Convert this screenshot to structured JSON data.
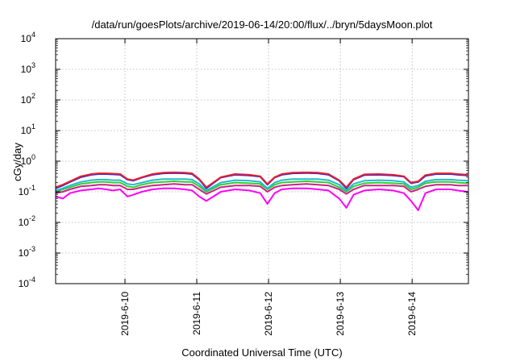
{
  "chart_data": {
    "type": "line",
    "title": "/data/run/goesPlots/archive/2019-06-14/20:00/flux/../bryn/5daysMoon.plot",
    "xlabel": "Coordinated Universal Time (UTC)",
    "ylabel": "cGy/day",
    "x_range": [
      "2019-06-09 02:00",
      "2019-06-14 20:00"
    ],
    "x_ticks": [
      "2019-6-10",
      "2019-6-11",
      "2019-6-12",
      "2019-6-13",
      "2019-6-14"
    ],
    "y_scale": "log",
    "ylim": [
      0.0001,
      10000
    ],
    "y_ticks": [
      {
        "base": "10",
        "exp": "4"
      },
      {
        "base": "10",
        "exp": "3"
      },
      {
        "base": "10",
        "exp": "2"
      },
      {
        "base": "10",
        "exp": "1"
      },
      {
        "base": "10",
        "exp": "0"
      },
      {
        "base": "10",
        "exp": "-1"
      },
      {
        "base": "10",
        "exp": "-2"
      },
      {
        "base": "10",
        "exp": "-3"
      },
      {
        "base": "10",
        "exp": "-4"
      }
    ],
    "grid": true,
    "legend": "none",
    "x_days": [
      0,
      0.1,
      0.2,
      0.35,
      0.5,
      0.6,
      0.7,
      0.8,
      0.9,
      1.0,
      1.08,
      1.2,
      1.35,
      1.5,
      1.65,
      1.8,
      1.9,
      2.0,
      2.1,
      2.3,
      2.5,
      2.7,
      2.85,
      2.95,
      3.05,
      3.15,
      3.3,
      3.5,
      3.65,
      3.8,
      3.95,
      4.05,
      4.15,
      4.3,
      4.5,
      4.7,
      4.85,
      4.95,
      5.05,
      5.15,
      5.3,
      5.5,
      5.6,
      5.74
    ],
    "series": [
      {
        "color": "#e8202a",
        "values": [
          0.14,
          0.17,
          0.22,
          0.32,
          0.38,
          0.4,
          0.4,
          0.39,
          0.38,
          0.26,
          0.24,
          0.3,
          0.38,
          0.42,
          0.43,
          0.42,
          0.4,
          0.26,
          0.14,
          0.3,
          0.38,
          0.36,
          0.32,
          0.18,
          0.3,
          0.38,
          0.42,
          0.43,
          0.42,
          0.38,
          0.24,
          0.14,
          0.26,
          0.37,
          0.38,
          0.36,
          0.32,
          0.2,
          0.22,
          0.35,
          0.4,
          0.4,
          0.38,
          0.36
        ]
      },
      {
        "color": "#2222ee",
        "values": [
          0.13,
          0.16,
          0.21,
          0.3,
          0.36,
          0.38,
          0.38,
          0.37,
          0.36,
          0.25,
          0.23,
          0.29,
          0.36,
          0.4,
          0.41,
          0.4,
          0.38,
          0.25,
          0.13,
          0.29,
          0.36,
          0.34,
          0.31,
          0.17,
          0.29,
          0.36,
          0.4,
          0.41,
          0.4,
          0.36,
          0.23,
          0.13,
          0.25,
          0.35,
          0.36,
          0.34,
          0.31,
          0.19,
          0.21,
          0.33,
          0.38,
          0.38,
          0.36,
          0.34
        ]
      },
      {
        "color": "#22bbcc",
        "values": [
          0.11,
          0.13,
          0.16,
          0.21,
          0.24,
          0.25,
          0.25,
          0.24,
          0.24,
          0.18,
          0.17,
          0.2,
          0.24,
          0.26,
          0.26,
          0.26,
          0.25,
          0.18,
          0.11,
          0.2,
          0.24,
          0.23,
          0.21,
          0.13,
          0.2,
          0.24,
          0.26,
          0.26,
          0.26,
          0.24,
          0.17,
          0.11,
          0.18,
          0.23,
          0.24,
          0.23,
          0.21,
          0.14,
          0.16,
          0.22,
          0.25,
          0.25,
          0.24,
          0.23
        ]
      },
      {
        "color": "#33cc33",
        "values": [
          0.1,
          0.12,
          0.14,
          0.18,
          0.2,
          0.21,
          0.21,
          0.2,
          0.2,
          0.15,
          0.14,
          0.17,
          0.2,
          0.21,
          0.22,
          0.21,
          0.21,
          0.15,
          0.1,
          0.17,
          0.2,
          0.19,
          0.18,
          0.12,
          0.17,
          0.2,
          0.21,
          0.22,
          0.21,
          0.2,
          0.14,
          0.1,
          0.15,
          0.19,
          0.2,
          0.19,
          0.18,
          0.12,
          0.14,
          0.19,
          0.21,
          0.21,
          0.2,
          0.19
        ]
      },
      {
        "color": "#cc2288",
        "values": [
          0.09,
          0.1,
          0.12,
          0.15,
          0.16,
          0.17,
          0.17,
          0.16,
          0.16,
          0.12,
          0.12,
          0.14,
          0.16,
          0.17,
          0.18,
          0.17,
          0.17,
          0.12,
          0.085,
          0.14,
          0.16,
          0.16,
          0.15,
          0.1,
          0.14,
          0.16,
          0.17,
          0.18,
          0.17,
          0.16,
          0.12,
          0.085,
          0.12,
          0.16,
          0.16,
          0.16,
          0.15,
          0.1,
          0.12,
          0.15,
          0.17,
          0.17,
          0.16,
          0.16
        ]
      },
      {
        "color": "#ff00ff",
        "values": [
          0.07,
          0.06,
          0.09,
          0.11,
          0.12,
          0.13,
          0.12,
          0.11,
          0.12,
          0.07,
          0.08,
          0.1,
          0.12,
          0.13,
          0.13,
          0.12,
          0.11,
          0.07,
          0.05,
          0.1,
          0.12,
          0.11,
          0.09,
          0.04,
          0.09,
          0.12,
          0.13,
          0.13,
          0.12,
          0.11,
          0.06,
          0.03,
          0.08,
          0.11,
          0.12,
          0.11,
          0.09,
          0.05,
          0.025,
          0.09,
          0.12,
          0.12,
          0.11,
          0.1
        ]
      }
    ]
  }
}
